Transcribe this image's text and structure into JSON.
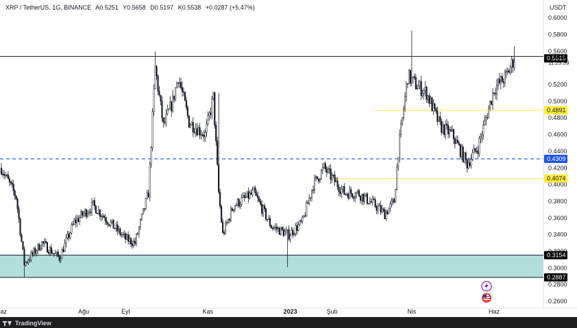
{
  "header": {
    "symbol": "XRP / TetherUS, 1G, BINANCE",
    "open": "A0.5251",
    "high": "Y0.5658",
    "low": "D0.5197",
    "close": "K0.5538",
    "change": "+0.0287 (+5.47%)",
    "currency": "USDT"
  },
  "footer": {
    "brand": "TradingView"
  },
  "price_panel": {
    "last_price": "0.5538",
    "countdown": "11:23:39"
  },
  "colors": {
    "up": "#131722",
    "down": "#131722",
    "zone": "#b2dfdb",
    "yellow_line": "#f5e663",
    "blue_line": "#2962ff",
    "badge_dark": "#000000",
    "badge_yellow": "#ffeb3b",
    "badge_blue": "#1e53e5"
  },
  "icons": [
    "lightning-icon",
    "us-flag-icon",
    "tradingview-logo-icon"
  ],
  "chart_data": {
    "type": "candlestick",
    "ylim": [
      0.26,
      0.61
    ],
    "y_ticks": [
      "0.6000",
      "0.5800",
      "0.5600",
      "0.5200",
      "0.5000",
      "0.4800",
      "0.4600",
      "0.4400",
      "0.4200",
      "0.4000",
      "0.3800",
      "0.3600",
      "0.3400",
      "0.3200",
      "0.3000",
      "0.2800",
      "0.2600"
    ],
    "x_labels": [
      "Haz",
      "Ağu",
      "Eyl",
      "Kas",
      "2023",
      "Şub",
      "Nis",
      "Haz"
    ],
    "x_label_dates": [
      "2022-06-01",
      "2022-08-01",
      "2022-09-01",
      "2022-11-01",
      "2023-01-01",
      "2023-02-01",
      "2023-04-01",
      "2023-06-01"
    ],
    "x_range": [
      "2022-06-01",
      "2023-07-06"
    ],
    "support_zone": [
      0.2887,
      0.3154
    ],
    "horizontal_lines": [
      {
        "price": 0.5538,
        "style": "solid",
        "color": "#131722"
      },
      {
        "price": 0.4891,
        "style": "solid",
        "color": "#f5e663"
      },
      {
        "price": 0.4309,
        "style": "dashed",
        "color": "#2962ff"
      },
      {
        "price": 0.4074,
        "style": "solid",
        "color": "#f5e663"
      }
    ],
    "price_labels": [
      {
        "value": "0.5515",
        "bg": "#000000",
        "fg": "#ffffff"
      },
      {
        "value": "0.4891",
        "bg": "#ffeb3b",
        "fg": "#131722"
      },
      {
        "value": "0.4309",
        "bg": "#1e53e5",
        "fg": "#ffffff"
      },
      {
        "value": "0.4074",
        "bg": "#ffeb3b",
        "fg": "#131722"
      },
      {
        "value": "0.3154",
        "bg": "#000000",
        "fg": "#ffffff"
      },
      {
        "value": "0.2887",
        "bg": "#000000",
        "fg": "#ffffff"
      }
    ],
    "path_keypoints": [
      {
        "date": "2022-06-01",
        "close": 0.42
      },
      {
        "date": "2022-06-12",
        "close": 0.385
      },
      {
        "date": "2022-06-18",
        "close": 0.305
      },
      {
        "date": "2022-07-01",
        "close": 0.33
      },
      {
        "date": "2022-07-14",
        "close": 0.312
      },
      {
        "date": "2022-07-25",
        "close": 0.355
      },
      {
        "date": "2022-08-08",
        "close": 0.375
      },
      {
        "date": "2022-08-20",
        "close": 0.355
      },
      {
        "date": "2022-09-01",
        "close": 0.335
      },
      {
        "date": "2022-09-08",
        "close": 0.33
      },
      {
        "date": "2022-09-18",
        "close": 0.39
      },
      {
        "date": "2022-09-23",
        "close": 0.54
      },
      {
        "date": "2022-09-29",
        "close": 0.47
      },
      {
        "date": "2022-10-06",
        "close": 0.5
      },
      {
        "date": "2022-10-10",
        "close": 0.53
      },
      {
        "date": "2022-10-18",
        "close": 0.475
      },
      {
        "date": "2022-10-30",
        "close": 0.46
      },
      {
        "date": "2022-11-05",
        "close": 0.505
      },
      {
        "date": "2022-11-09",
        "close": 0.39
      },
      {
        "date": "2022-11-12",
        "close": 0.34
      },
      {
        "date": "2022-11-20",
        "close": 0.375
      },
      {
        "date": "2022-12-05",
        "close": 0.39
      },
      {
        "date": "2022-12-18",
        "close": 0.35
      },
      {
        "date": "2022-12-31",
        "close": 0.34
      },
      {
        "date": "2023-01-10",
        "close": 0.355
      },
      {
        "date": "2023-01-18",
        "close": 0.4
      },
      {
        "date": "2023-01-26",
        "close": 0.42
      },
      {
        "date": "2023-02-10",
        "close": 0.39
      },
      {
        "date": "2023-02-20",
        "close": 0.39
      },
      {
        "date": "2023-03-05",
        "close": 0.375
      },
      {
        "date": "2023-03-12",
        "close": 0.365
      },
      {
        "date": "2023-03-19",
        "close": 0.38
      },
      {
        "date": "2023-03-22",
        "close": 0.44
      },
      {
        "date": "2023-03-29",
        "close": 0.53
      },
      {
        "date": "2023-04-04",
        "close": 0.52
      },
      {
        "date": "2023-04-12",
        "close": 0.51
      },
      {
        "date": "2023-04-22",
        "close": 0.47
      },
      {
        "date": "2023-05-01",
        "close": 0.46
      },
      {
        "date": "2023-05-12",
        "close": 0.425
      },
      {
        "date": "2023-05-20",
        "close": 0.445
      },
      {
        "date": "2023-06-01",
        "close": 0.515
      },
      {
        "date": "2023-06-10",
        "close": 0.53
      },
      {
        "date": "2023-06-16",
        "close": 0.5515
      }
    ],
    "extreme_wicks": [
      {
        "date": "2022-06-18",
        "low": 0.289
      },
      {
        "date": "2022-09-23",
        "high": 0.56
      },
      {
        "date": "2022-11-09",
        "high": 0.51
      },
      {
        "date": "2022-12-30",
        "low": 0.301
      },
      {
        "date": "2023-04-01",
        "high": 0.585
      },
      {
        "date": "2023-06-16",
        "high": 0.5658
      }
    ]
  }
}
